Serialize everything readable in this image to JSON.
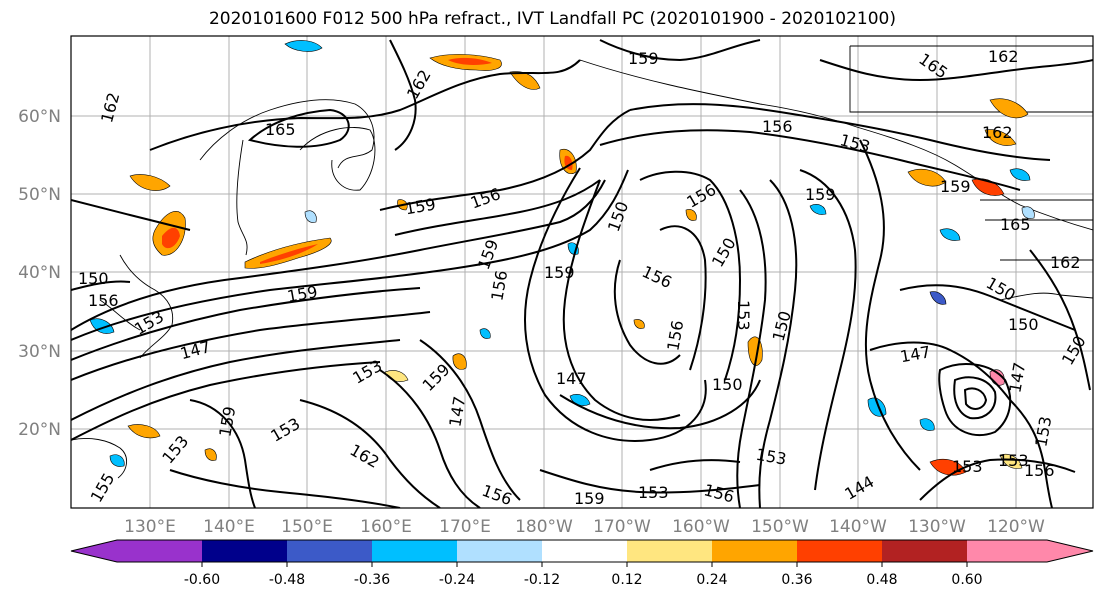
{
  "title": "2020101600 F012 500 hPa refract., IVT Landfall PC (2020101900 - 2020102100)",
  "lat_labels": [
    "60°N",
    "50°N",
    "40°N",
    "30°N",
    "20°N"
  ],
  "lon_labels": [
    "130°E",
    "140°E",
    "150°E",
    "160°E",
    "170°E",
    "180°W",
    "170°W",
    "160°W",
    "150°W",
    "140°W",
    "130°W",
    "120°W"
  ],
  "colorbar": {
    "colors": [
      "#9932cc",
      "#00008b",
      "#3c5ac8",
      "#00bfff",
      "#b0e0ff",
      "#ffffff",
      "#ffe680",
      "#ffa500",
      "#ff4000",
      "#b22222",
      "#ff88aa"
    ],
    "tick_labels": [
      "-0.60",
      "-0.48",
      "-0.36",
      "-0.24",
      "-0.12",
      "0.12",
      "0.24",
      "0.36",
      "0.48",
      "0.60"
    ]
  },
  "contour_labels": [
    "162",
    "159",
    "165",
    "162",
    "165",
    "162",
    "156",
    "153",
    "162",
    "159",
    "162",
    "165",
    "159",
    "156",
    "159",
    "150",
    "156",
    "159",
    "150",
    "156",
    "159",
    "159",
    "156",
    "150",
    "156",
    "147",
    "150",
    "153",
    "159",
    "150",
    "147",
    "153",
    "147",
    "153",
    "159",
    "153",
    "162",
    "147",
    "150",
    "147",
    "150",
    "153",
    "156",
    "156",
    "159",
    "153",
    "144",
    "153",
    "153",
    "156",
    "153",
    "150",
    "156",
    "153",
    "155"
  ]
}
